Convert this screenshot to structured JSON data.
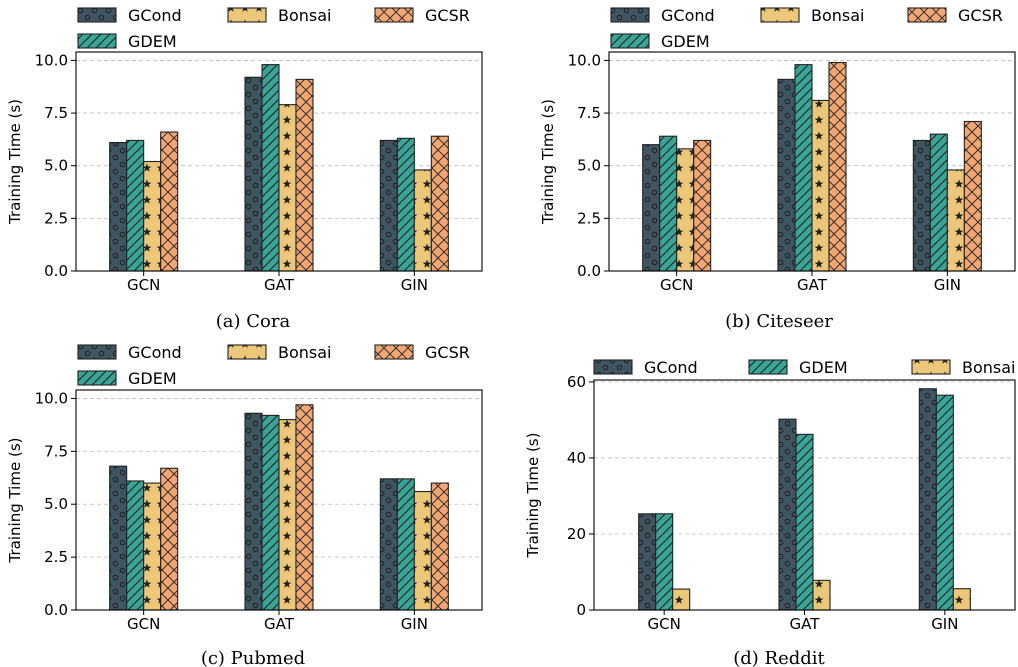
{
  "colors": {
    "GCond": "#3f5561",
    "GDEM": "#3aa596",
    "Bonsai": "#ecc77a",
    "GCSR": "#f1a673",
    "grid": "#bdbdbd",
    "edge": "#222222"
  },
  "patterns": {
    "GCond": "circles",
    "GDEM": "diagonal-hatch",
    "Bonsai": "stars",
    "GCSR": "crosshatch"
  },
  "legend_rows": {
    "four_methods": [
      [
        "GCond",
        "Bonsai",
        "GCSR"
      ],
      [
        "GDEM"
      ]
    ],
    "three_methods": [
      [
        "GCond",
        "GDEM",
        "Bonsai"
      ]
    ]
  },
  "chart_data": [
    {
      "type": "bar",
      "caption": "(a) Cora",
      "ylabel": "Training Time (s)",
      "categories": [
        "GCN",
        "GAT",
        "GIN"
      ],
      "ylim": [
        0,
        10.4
      ],
      "yticks": [
        0.0,
        2.5,
        5.0,
        7.5,
        10.0
      ],
      "ytick_labels": [
        "0.0",
        "2.5",
        "5.0",
        "7.5",
        "10.0"
      ],
      "grid": "horizontal dashed",
      "legend": "top",
      "series": [
        {
          "name": "GCond",
          "values": [
            6.1,
            9.2,
            6.2
          ]
        },
        {
          "name": "GDEM",
          "values": [
            6.2,
            9.8,
            6.3
          ]
        },
        {
          "name": "Bonsai",
          "values": [
            5.2,
            7.9,
            4.8
          ]
        },
        {
          "name": "GCSR",
          "values": [
            6.6,
            9.1,
            6.4
          ]
        }
      ]
    },
    {
      "type": "bar",
      "caption": "(b) Citeseer",
      "ylabel": "Training Time (s)",
      "categories": [
        "GCN",
        "GAT",
        "GIN"
      ],
      "ylim": [
        0,
        10.4
      ],
      "yticks": [
        0.0,
        2.5,
        5.0,
        7.5,
        10.0
      ],
      "ytick_labels": [
        "0.0",
        "2.5",
        "5.0",
        "7.5",
        "10.0"
      ],
      "grid": "horizontal dashed",
      "legend": "top",
      "series": [
        {
          "name": "GCond",
          "values": [
            6.0,
            9.1,
            6.2
          ]
        },
        {
          "name": "GDEM",
          "values": [
            6.4,
            9.8,
            6.5
          ]
        },
        {
          "name": "Bonsai",
          "values": [
            5.8,
            8.1,
            4.8
          ]
        },
        {
          "name": "GCSR",
          "values": [
            6.2,
            9.9,
            7.1
          ]
        }
      ]
    },
    {
      "type": "bar",
      "caption": "(c) Pubmed",
      "ylabel": "Training Time (s)",
      "categories": [
        "GCN",
        "GAT",
        "GIN"
      ],
      "ylim": [
        0,
        10.4
      ],
      "yticks": [
        0.0,
        2.5,
        5.0,
        7.5,
        10.0
      ],
      "ytick_labels": [
        "0.0",
        "2.5",
        "5.0",
        "7.5",
        "10.0"
      ],
      "grid": "horizontal dashed",
      "legend": "top",
      "series": [
        {
          "name": "GCond",
          "values": [
            6.8,
            9.3,
            6.2
          ]
        },
        {
          "name": "GDEM",
          "values": [
            6.1,
            9.2,
            6.2
          ]
        },
        {
          "name": "Bonsai",
          "values": [
            6.0,
            9.0,
            5.6
          ]
        },
        {
          "name": "GCSR",
          "values": [
            6.7,
            9.7,
            6.0
          ]
        }
      ]
    },
    {
      "type": "bar",
      "caption": "(d) Reddit",
      "ylabel": "Training Time (s)",
      "categories": [
        "GCN",
        "GAT",
        "GIN"
      ],
      "ylim": [
        0,
        60.5
      ],
      "yticks": [
        0,
        20,
        40,
        60
      ],
      "ytick_labels": [
        "0",
        "20",
        "40",
        "60"
      ],
      "grid": "horizontal dashed",
      "legend": "top",
      "series": [
        {
          "name": "GCond",
          "values": [
            25.3,
            50.2,
            58.2
          ]
        },
        {
          "name": "GDEM",
          "values": [
            25.3,
            46.2,
            56.5
          ]
        },
        {
          "name": "Bonsai",
          "values": [
            5.5,
            7.8,
            5.6
          ]
        }
      ]
    }
  ]
}
